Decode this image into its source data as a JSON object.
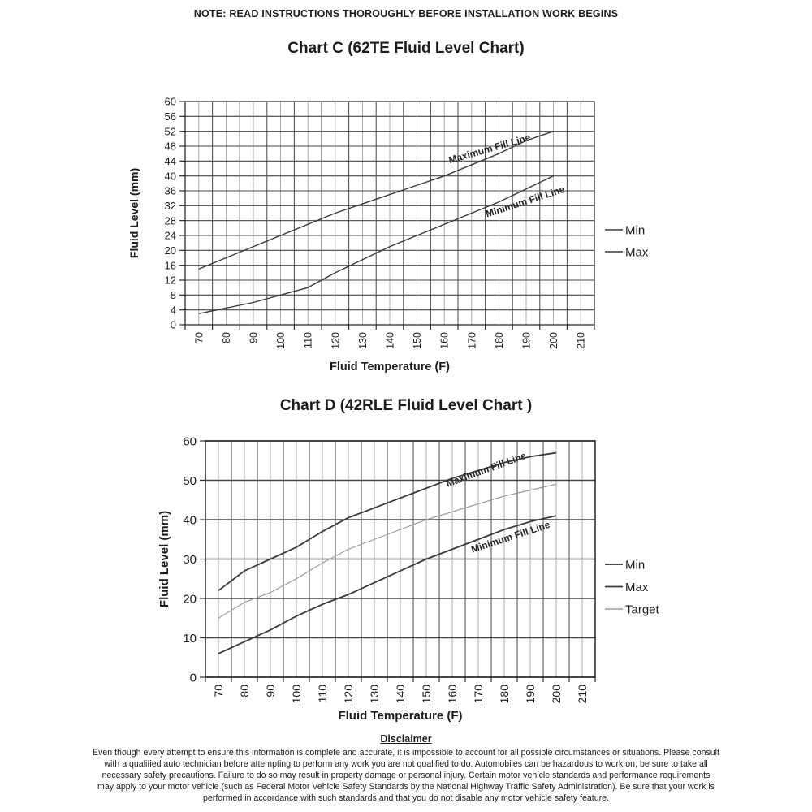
{
  "note": "NOTE: READ INSTRUCTIONS THOROUGHLY BEFORE INSTALLATION WORK BEGINS",
  "colors": {
    "ink": "#1c1c1c",
    "plot_border": "#2e2e2e",
    "grid_major": "#474747",
    "grid_minor": "#979797",
    "series_dark": "#3a3a3a",
    "series_light": "#9a9a9a"
  },
  "chart_data": [
    {
      "type": "line",
      "title": "Chart C (62TE Fluid Level Chart)",
      "xlabel": "Fluid Temperature (F)",
      "ylabel": "Fluid Level (mm)",
      "categories": [
        "70",
        "80",
        "90",
        "100",
        "110",
        "120",
        "130",
        "140",
        "150",
        "160",
        "170",
        "180",
        "190",
        "200",
        "210"
      ],
      "ylim": [
        0,
        60
      ],
      "ytick_step": 4,
      "grid": "on",
      "legend_position": "right",
      "series": [
        {
          "name": "Min",
          "annotation": "Minimum Fill Line",
          "color": "#3a3a3a",
          "width": 1.4,
          "values": [
            3,
            4.5,
            6,
            8,
            10,
            14,
            17.5,
            21,
            24,
            27,
            30,
            33,
            36.5,
            40,
            null
          ]
        },
        {
          "name": "Max",
          "annotation": "Maximum Fill Line",
          "color": "#3a3a3a",
          "width": 1.4,
          "values": [
            15,
            18,
            21,
            24,
            27,
            30,
            32.5,
            35,
            37.5,
            40,
            43,
            46,
            49.5,
            52,
            null
          ]
        }
      ]
    },
    {
      "type": "line",
      "title": "Chart D (42RLE Fluid Level Chart )",
      "xlabel": "Fluid Temperature (F)",
      "ylabel": "Fluid Level (mm)",
      "categories": [
        "70",
        "80",
        "90",
        "100",
        "110",
        "120",
        "130",
        "140",
        "150",
        "160",
        "170",
        "180",
        "190",
        "200",
        "210"
      ],
      "ylim": [
        0,
        60
      ],
      "ytick_step": 10,
      "grid": "on",
      "legend_position": "right",
      "series": [
        {
          "name": "Min",
          "annotation": "Minimum Fill Line",
          "color": "#3a3a3a",
          "width": 1.8,
          "values": [
            6,
            9,
            12,
            15.5,
            18.5,
            21,
            24,
            27,
            30,
            32.5,
            35,
            37.5,
            39.5,
            41,
            null
          ]
        },
        {
          "name": "Max",
          "annotation": "Maximum Fill Line",
          "color": "#3a3a3a",
          "width": 1.8,
          "values": [
            22,
            27,
            30,
            33,
            37,
            40.5,
            43,
            45.5,
            48,
            50.5,
            52.5,
            54.5,
            56,
            57,
            null
          ]
        },
        {
          "name": "Target",
          "annotation": "",
          "color": "#9a9a9a",
          "width": 1.2,
          "values": [
            15,
            19,
            21.5,
            25,
            29,
            32.5,
            35,
            37.5,
            40,
            42,
            44,
            46,
            47.5,
            49,
            null
          ]
        }
      ]
    }
  ],
  "disclaimer": {
    "heading": "Disclaimer",
    "lines": [
      "Even though every attempt to ensure this information is complete and accurate, it is impossible to account for all possible circumstances or situations.  Please consult",
      "with a qualified auto technician before attempting to perform any work you are not qualified to do.  Automobiles can be hazardous to work on; be sure to take all",
      "necessary safety precautions.  Failure to do so may result in property damage or personal injury.  Certain motor vehicle standards and performance requirements",
      "may apply to your motor vehicle (such as Federal Motor Vehicle Safety Standards by the National Highway Traffic Safety Administration).  Be sure that your work is",
      "performed in accordance with such standards and that you do not disable any motor vehicle safety feature."
    ]
  }
}
